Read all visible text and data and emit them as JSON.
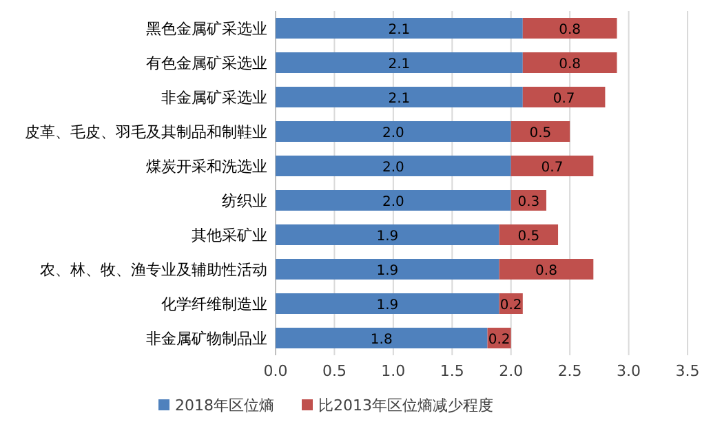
{
  "chart_data": {
    "type": "bar",
    "orientation": "horizontal",
    "stacked": true,
    "grid": "x",
    "legend": "bottom",
    "categories": [
      "黑色金属矿采选业",
      "有色金属矿采选业",
      "非金属矿采选业",
      "皮革、毛皮、羽毛及其制品和制鞋业",
      "煤炭开采和洗选业",
      "纺织业",
      "其他采矿业",
      "农、林、牧、渔专业及辅助性活动",
      "化学纤维制造业",
      "非金属矿物制品业"
    ],
    "series": [
      {
        "name": "2018年区位熵",
        "color": "#4f81bd",
        "values": [
          2.1,
          2.1,
          2.1,
          2.0,
          2.0,
          2.0,
          1.9,
          1.9,
          1.9,
          1.8
        ],
        "value_labels": [
          "2.1",
          "2.1",
          "2.1",
          "2.0",
          "2.0",
          "2.0",
          "1.9",
          "1.9",
          "1.9",
          "1.8"
        ]
      },
      {
        "name": "比2013年区位熵减少程度",
        "color": "#c0504d",
        "values": [
          0.8,
          0.8,
          0.7,
          0.5,
          0.7,
          0.3,
          0.5,
          0.8,
          0.2,
          0.2
        ],
        "value_labels": [
          "0.8",
          "0.8",
          "0.7",
          "0.5",
          "0.7",
          "0.3",
          "0.5",
          "0.8",
          "0.2",
          "0.2"
        ]
      }
    ],
    "xlim": [
      0,
      3.5
    ],
    "xticks": [
      {
        "value": 0,
        "label": "0.0"
      },
      {
        "value": 0.5,
        "label": "0.5"
      },
      {
        "value": 1,
        "label": "1.0"
      },
      {
        "value": 1.5,
        "label": "1.5"
      },
      {
        "value": 2,
        "label": "2.0"
      },
      {
        "value": 2.5,
        "label": "2.5"
      },
      {
        "value": 3,
        "label": "3.0"
      },
      {
        "value": 3.5,
        "label": "3.5"
      }
    ]
  }
}
